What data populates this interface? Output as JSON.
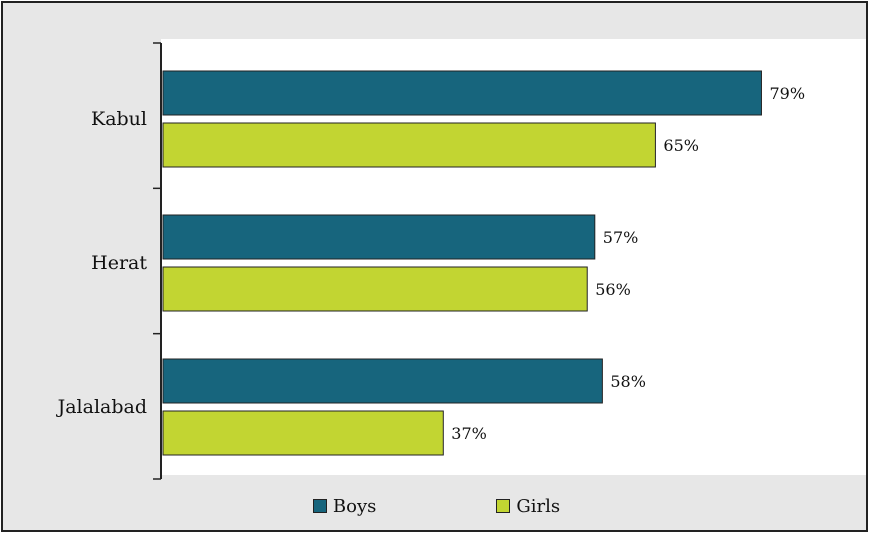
{
  "chart_data": {
    "type": "bar",
    "orientation": "horizontal",
    "categories": [
      "Kabul",
      "Herat",
      "Jalalabad"
    ],
    "series": [
      {
        "name": "Boys",
        "values": [
          79,
          57,
          58
        ],
        "color": "#17657d"
      },
      {
        "name": "Girls",
        "values": [
          65,
          56,
          37
        ],
        "color": "#c2d532"
      }
    ],
    "value_suffix": "%",
    "xlim": [
      0,
      90
    ],
    "grid": false,
    "legend_position": "bottom"
  }
}
